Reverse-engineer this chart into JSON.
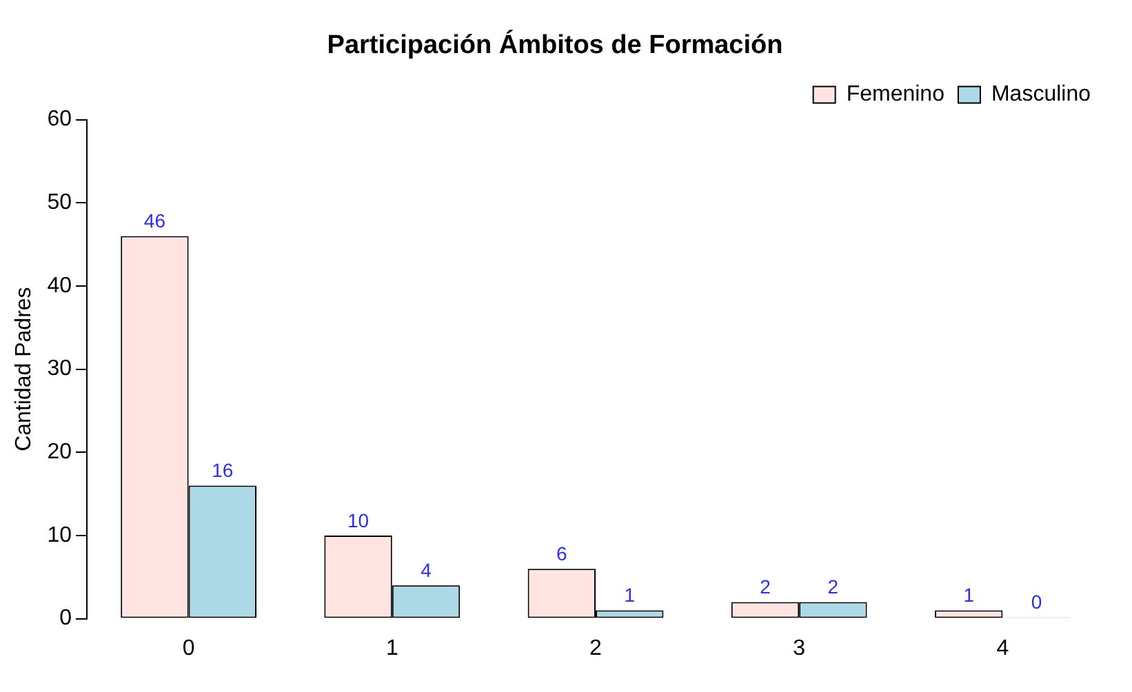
{
  "chart_data": {
    "type": "bar",
    "title": "Participación Ámbitos de Formación",
    "ylabel": "Cantidad Padres",
    "categories": [
      "0",
      "1",
      "2",
      "3",
      "4"
    ],
    "series": [
      {
        "name": "Femenino",
        "color": "#ffe4e1",
        "values": [
          46,
          10,
          6,
          2,
          1
        ]
      },
      {
        "name": "Masculino",
        "color": "#add8e6",
        "values": [
          16,
          4,
          1,
          2,
          0
        ]
      }
    ],
    "ylim": [
      0,
      60
    ],
    "yticks": [
      0,
      10,
      20,
      30,
      40,
      50,
      60
    ],
    "grid": false,
    "legend": "top right",
    "data_labels": true
  }
}
